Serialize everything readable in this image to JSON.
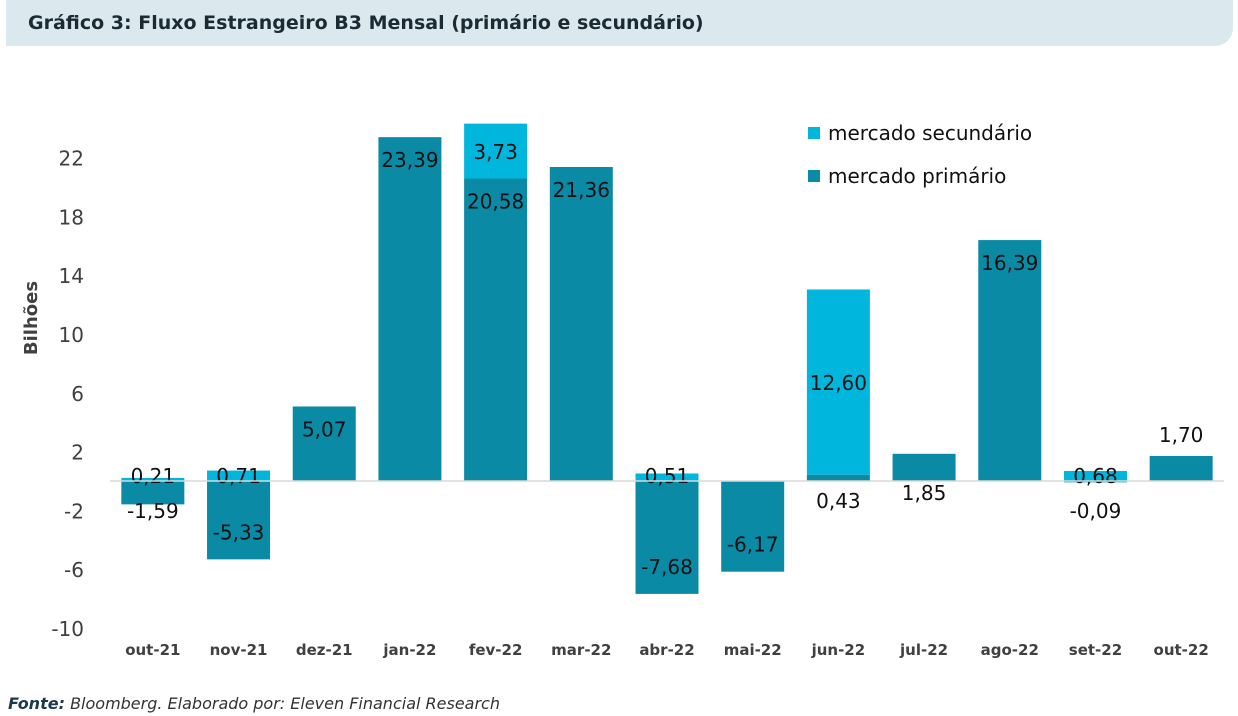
{
  "header": {
    "title": "Gráfico 3: Fluxo Estrangeiro B3 Mensal (primário e secundário)"
  },
  "footer": {
    "source_label": "Fonte:",
    "source_text": "Bloomberg. Elaborado por: Eleven Financial Research"
  },
  "colors": {
    "primary": "#0a8aa5",
    "secondary": "#00b6dc",
    "title_bg": "#dbe9ef"
  },
  "chart_data": {
    "type": "bar",
    "stacked": true,
    "title": "",
    "xlabel": "",
    "ylabel": "Bilhões",
    "ylim": [
      -10,
      24
    ],
    "yticks": [
      -10,
      -6,
      -2,
      2,
      6,
      10,
      14,
      18,
      22
    ],
    "ytick_labels": [
      "-10",
      "-6",
      "-2",
      "2",
      "6",
      "10",
      "14",
      "18",
      "22"
    ],
    "grid": false,
    "legend": "top-right",
    "categories": [
      "out-21",
      "nov-21",
      "dez-21",
      "jan-22",
      "fev-22",
      "mar-22",
      "abr-22",
      "mai-22",
      "jun-22",
      "jul-22",
      "ago-22",
      "set-22",
      "out-22"
    ],
    "series": [
      {
        "name": "mercado secundário",
        "color": "#00b6dc",
        "values": [
          0.21,
          0.71,
          null,
          null,
          3.73,
          null,
          0.51,
          null,
          12.6,
          null,
          null,
          0.68,
          null
        ],
        "labels": [
          "0,21",
          "0,71",
          "",
          "",
          "3,73",
          "",
          "0,51",
          "",
          "12,60",
          "",
          "",
          "0,68",
          ""
        ]
      },
      {
        "name": "mercado primário",
        "color": "#0a8aa5",
        "values": [
          -1.59,
          -5.33,
          5.07,
          23.39,
          20.58,
          21.36,
          -7.68,
          -6.17,
          0.43,
          1.85,
          16.39,
          -0.09,
          1.7
        ],
        "labels": [
          "-1,59",
          "-5,33",
          "5,07",
          "23,39",
          "20,58",
          "21,36",
          "-7,68",
          "-6,17",
          "0,43",
          "1,85",
          "16,39",
          "-0,09",
          "1,70"
        ]
      }
    ]
  }
}
